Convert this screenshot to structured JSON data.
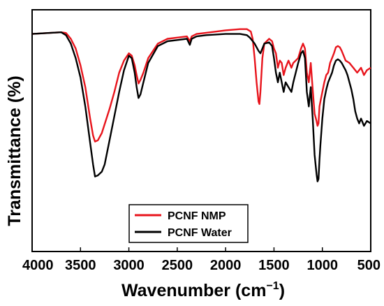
{
  "chart_data": {
    "type": "line",
    "xlabel": "Wavenumber (cm",
    "xlabel_sup": "−1",
    "xlabel_end": ")",
    "ylabel": "Transmittance (%)",
    "xlim": [
      4000,
      500
    ],
    "ylim": [
      0,
      100
    ],
    "x_ticks": [
      "4000",
      "3500",
      "3000",
      "2500",
      "2000",
      "1500",
      "1000",
      "500"
    ],
    "legend_position": "bottom-center",
    "grid": false,
    "series": [
      {
        "name": "PCNF NMP",
        "color": "#e8141c",
        "points": [
          [
            4000,
            90
          ],
          [
            3800,
            90.5
          ],
          [
            3700,
            90.7
          ],
          [
            3650,
            90.4
          ],
          [
            3600,
            88
          ],
          [
            3550,
            84
          ],
          [
            3500,
            77
          ],
          [
            3450,
            68
          ],
          [
            3400,
            55
          ],
          [
            3370,
            48
          ],
          [
            3350,
            45.5
          ],
          [
            3320,
            46
          ],
          [
            3280,
            49
          ],
          [
            3200,
            59
          ],
          [
            3150,
            66
          ],
          [
            3100,
            74
          ],
          [
            3050,
            79
          ],
          [
            3000,
            82
          ],
          [
            2970,
            81
          ],
          [
            2940,
            77
          ],
          [
            2920,
            73
          ],
          [
            2900,
            69.5
          ],
          [
            2880,
            71
          ],
          [
            2850,
            74
          ],
          [
            2800,
            80
          ],
          [
            2700,
            86
          ],
          [
            2600,
            88
          ],
          [
            2500,
            88.5
          ],
          [
            2400,
            89
          ],
          [
            2370,
            87
          ],
          [
            2350,
            89
          ],
          [
            2300,
            90
          ],
          [
            2200,
            90.5
          ],
          [
            2000,
            91.5
          ],
          [
            1850,
            92
          ],
          [
            1780,
            92
          ],
          [
            1740,
            91
          ],
          [
            1720,
            88
          ],
          [
            1700,
            80
          ],
          [
            1680,
            70
          ],
          [
            1660,
            62
          ],
          [
            1650,
            61
          ],
          [
            1640,
            66
          ],
          [
            1620,
            80
          ],
          [
            1600,
            86
          ],
          [
            1550,
            88
          ],
          [
            1520,
            87
          ],
          [
            1500,
            84
          ],
          [
            1480,
            82
          ],
          [
            1460,
            76
          ],
          [
            1440,
            79
          ],
          [
            1420,
            78
          ],
          [
            1400,
            73
          ],
          [
            1380,
            76
          ],
          [
            1350,
            79
          ],
          [
            1320,
            76
          ],
          [
            1300,
            78
          ],
          [
            1250,
            80
          ],
          [
            1220,
            84
          ],
          [
            1200,
            86
          ],
          [
            1180,
            84
          ],
          [
            1160,
            74
          ],
          [
            1140,
            70
          ],
          [
            1120,
            78
          ],
          [
            1100,
            67
          ],
          [
            1080,
            57
          ],
          [
            1060,
            54
          ],
          [
            1050,
            52
          ],
          [
            1040,
            53
          ],
          [
            1030,
            60
          ],
          [
            1020,
            62
          ],
          [
            1000,
            66
          ],
          [
            980,
            70
          ],
          [
            960,
            73
          ],
          [
            940,
            74
          ],
          [
            920,
            78
          ],
          [
            900,
            80
          ],
          [
            880,
            82
          ],
          [
            860,
            84.5
          ],
          [
            840,
            85
          ],
          [
            820,
            84.5
          ],
          [
            800,
            83
          ],
          [
            780,
            81
          ],
          [
            760,
            79
          ],
          [
            740,
            78.5
          ],
          [
            720,
            78
          ],
          [
            700,
            77
          ],
          [
            680,
            76
          ],
          [
            660,
            75
          ],
          [
            640,
            74
          ],
          [
            620,
            75
          ],
          [
            600,
            76
          ],
          [
            570,
            73
          ],
          [
            540,
            75
          ],
          [
            500,
            76
          ]
        ]
      },
      {
        "name": "PCNF Water",
        "color": "#000000",
        "points": [
          [
            4000,
            90
          ],
          [
            3800,
            90.5
          ],
          [
            3700,
            90.7
          ],
          [
            3650,
            89.5
          ],
          [
            3600,
            86
          ],
          [
            3550,
            80
          ],
          [
            3500,
            72
          ],
          [
            3450,
            60
          ],
          [
            3400,
            45
          ],
          [
            3370,
            36
          ],
          [
            3350,
            31
          ],
          [
            3320,
            31.5
          ],
          [
            3280,
            33
          ],
          [
            3250,
            36
          ],
          [
            3200,
            46
          ],
          [
            3150,
            56
          ],
          [
            3100,
            66
          ],
          [
            3050,
            75
          ],
          [
            3000,
            81
          ],
          [
            2970,
            80
          ],
          [
            2940,
            74
          ],
          [
            2920,
            68
          ],
          [
            2900,
            63.5
          ],
          [
            2880,
            65
          ],
          [
            2850,
            70
          ],
          [
            2800,
            78
          ],
          [
            2700,
            85
          ],
          [
            2600,
            87
          ],
          [
            2500,
            87.5
          ],
          [
            2400,
            88
          ],
          [
            2370,
            85.5
          ],
          [
            2350,
            88
          ],
          [
            2300,
            89
          ],
          [
            2200,
            89.5
          ],
          [
            2000,
            90
          ],
          [
            1850,
            90
          ],
          [
            1780,
            89.5
          ],
          [
            1750,
            88.5
          ],
          [
            1700,
            86
          ],
          [
            1660,
            83
          ],
          [
            1640,
            82
          ],
          [
            1620,
            84
          ],
          [
            1600,
            86
          ],
          [
            1550,
            86.5
          ],
          [
            1520,
            85
          ],
          [
            1500,
            80
          ],
          [
            1480,
            74
          ],
          [
            1460,
            70
          ],
          [
            1440,
            74
          ],
          [
            1420,
            70
          ],
          [
            1400,
            66
          ],
          [
            1380,
            70
          ],
          [
            1350,
            68
          ],
          [
            1320,
            66
          ],
          [
            1300,
            70
          ],
          [
            1250,
            78
          ],
          [
            1220,
            82
          ],
          [
            1200,
            83
          ],
          [
            1180,
            80
          ],
          [
            1160,
            66
          ],
          [
            1140,
            60
          ],
          [
            1120,
            68
          ],
          [
            1100,
            55
          ],
          [
            1080,
            40
          ],
          [
            1060,
            32
          ],
          [
            1050,
            29
          ],
          [
            1040,
            30
          ],
          [
            1030,
            38
          ],
          [
            1020,
            44
          ],
          [
            1000,
            55
          ],
          [
            980,
            63
          ],
          [
            960,
            67
          ],
          [
            940,
            70
          ],
          [
            920,
            72
          ],
          [
            900,
            74
          ],
          [
            880,
            77
          ],
          [
            860,
            79
          ],
          [
            840,
            79.5
          ],
          [
            820,
            79
          ],
          [
            800,
            78
          ],
          [
            780,
            76.5
          ],
          [
            760,
            75
          ],
          [
            740,
            73
          ],
          [
            720,
            70
          ],
          [
            700,
            67
          ],
          [
            680,
            63
          ],
          [
            660,
            58
          ],
          [
            640,
            55
          ],
          [
            620,
            53
          ],
          [
            600,
            55
          ],
          [
            570,
            52
          ],
          [
            540,
            54
          ],
          [
            500,
            53
          ]
        ]
      }
    ]
  }
}
